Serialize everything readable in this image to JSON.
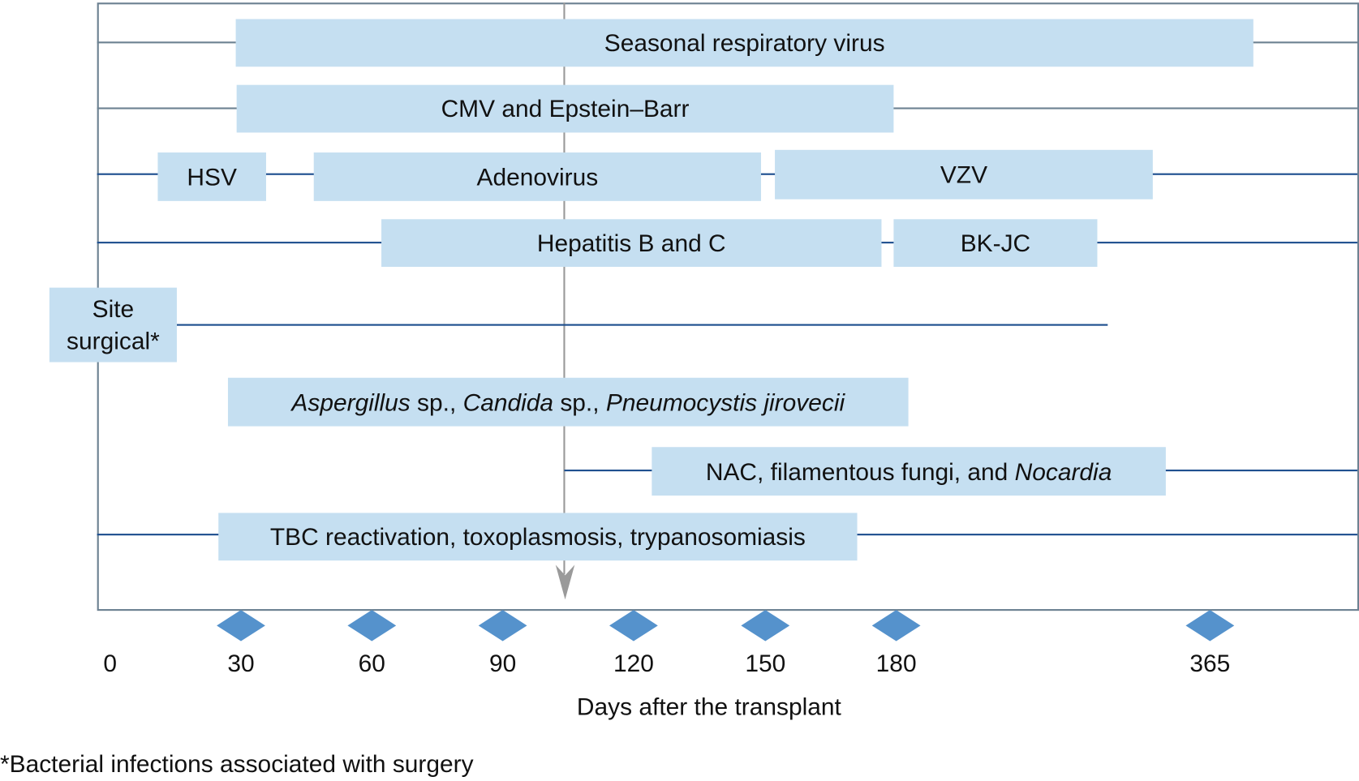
{
  "rows": {
    "seasonal": "Seasonal respiratory virus",
    "cmv": "CMV and Epstein–Barr",
    "hsv": "HSV",
    "adeno": "Adenovirus",
    "vzv": "VZV",
    "hep": "Hepatitis B and C",
    "bkjc": "BK-JC",
    "site_line1": "Site",
    "site_line2": "surgical*",
    "fungi": {
      "a": "Aspergillus",
      "b": " sp., ",
      "c": "Candida",
      "d": " sp., ",
      "e": "Pneumocystis jirovecii"
    },
    "nac": {
      "a": "NAC, filamentous fungi, and ",
      "b": "Nocardia"
    },
    "tbc": "TBC reactivation, toxoplasmosis, trypanosomiasis"
  },
  "axis": {
    "ticks": [
      "0",
      "30",
      "60",
      "90",
      "120",
      "150",
      "180",
      "365"
    ],
    "title": "Days after the transplant"
  },
  "footnote": "*Bacterial infections associated with surgery",
  "colors": {
    "box": "#c5dff1",
    "line_blue": "#1e4f8f",
    "line_gray": "#6d8292",
    "marker": "#5592cc",
    "arrow": "#9a9a9a"
  }
}
